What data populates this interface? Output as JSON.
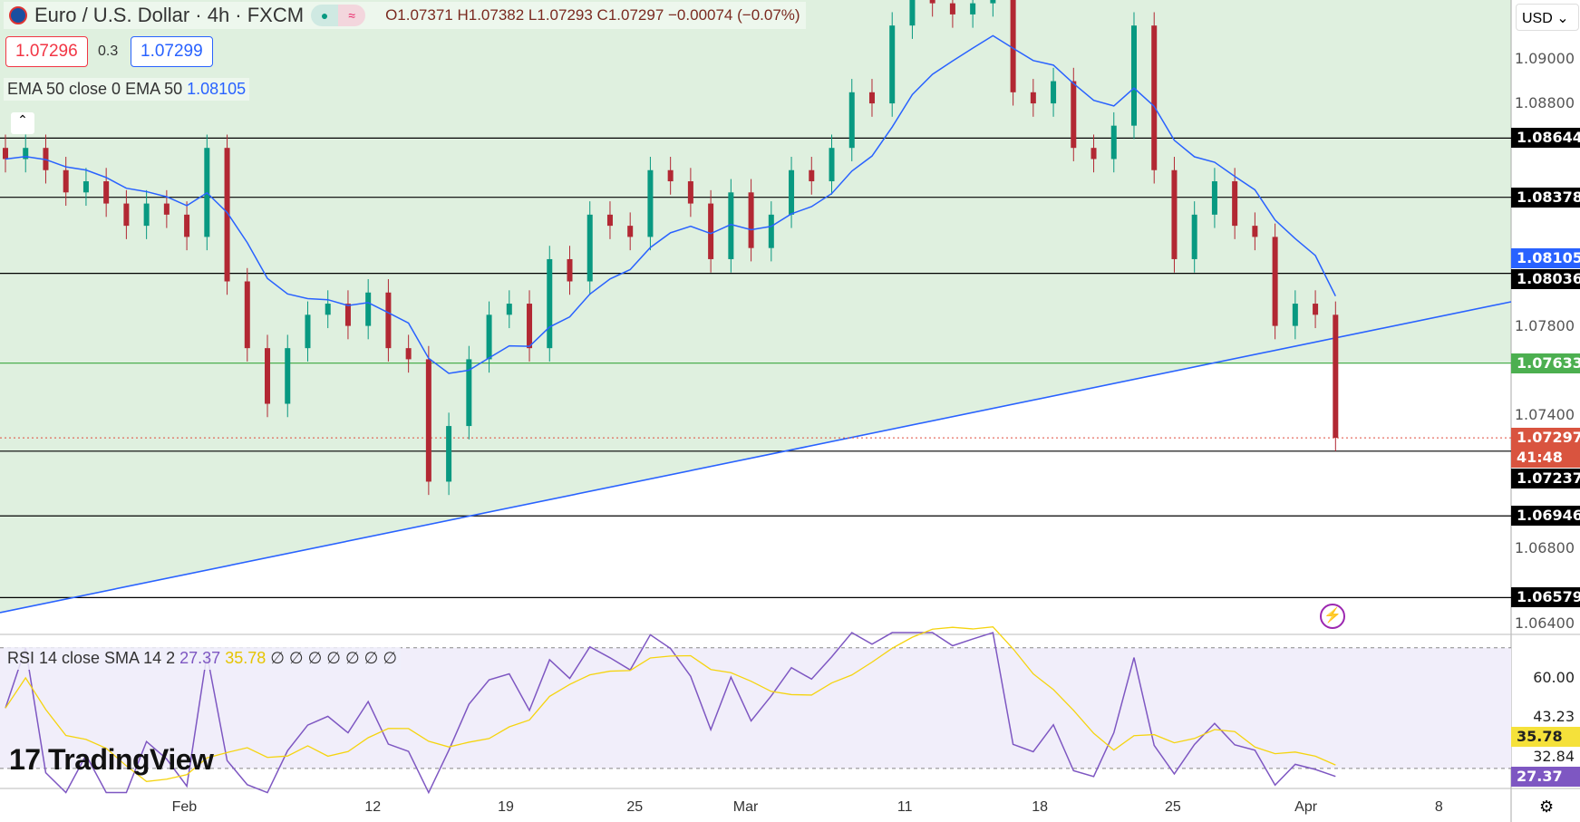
{
  "header": {
    "symbol": "Euro / U.S. Dollar · 4h · FXCM",
    "ohlc": "O1.07371 H1.07382 L1.07293 C1.07297 −0.00074 (−0.07%)",
    "bid": "1.07296",
    "spread": "0.3",
    "ask": "1.07299",
    "market_status": "open"
  },
  "ema_legend": {
    "label": "EMA 50 close 0 EMA 50",
    "value": "1.08105"
  },
  "rsi_legend": {
    "label": "RSI 14 close SMA 14 2",
    "rsi": "27.37",
    "sma": "35.78",
    "extra": "∅ ∅ ∅ ∅ ∅ ∅ ∅"
  },
  "currency": "USD",
  "branding": "TradingView",
  "colors": {
    "up": "#089981",
    "down": "#b22833",
    "ema": "#2962ff",
    "rsi": "#7e57c2",
    "rsi_sma": "#f5d40f",
    "zone": "#dff0df"
  },
  "chart_data": [
    {
      "type": "candlestick",
      "series": [
        {
          "name": "EURUSD",
          "closes": [
            1.0855,
            1.086,
            1.085,
            1.084,
            1.0845,
            1.0835,
            1.0825,
            1.0835,
            1.083,
            1.082,
            1.086,
            1.08,
            1.077,
            1.0745,
            1.077,
            1.0785,
            1.079,
            1.078,
            1.0795,
            1.077,
            1.0765,
            1.071,
            1.0735,
            1.0765,
            1.0785,
            1.079,
            1.077,
            1.081,
            1.08,
            1.083,
            1.0825,
            1.082,
            1.085,
            1.0845,
            1.0835,
            1.081,
            1.084,
            1.0815,
            1.083,
            1.085,
            1.0845,
            1.086,
            1.0885,
            1.088,
            1.0915,
            1.0935,
            1.0925,
            1.092,
            1.0925,
            1.093,
            1.0885,
            1.088,
            1.089,
            1.086,
            1.0855,
            1.087,
            1.0915,
            1.085,
            1.081,
            1.083,
            1.0845,
            1.0825,
            1.082,
            1.078,
            1.079,
            1.0785,
            1.07297
          ]
        },
        {
          "name": "EMA 50"
        }
      ],
      "ylim": [
        1.064,
        1.091
      ],
      "yticks": [
        "1.09000",
        "1.08800",
        "1.07800",
        "1.07400",
        "1.06800",
        "1.06400"
      ],
      "levels": [
        {
          "value": "1.08644",
          "color": "#000000"
        },
        {
          "value": "1.08378",
          "color": "#000000"
        },
        {
          "value": "1.08105",
          "color": "#2962ff",
          "label_only": true
        },
        {
          "value": "1.08036",
          "color": "#000000"
        },
        {
          "value": "1.07633",
          "color": "#4caf50"
        },
        {
          "value": "1.07237",
          "color": "#000000"
        },
        {
          "value": "1.06946",
          "color": "#000000"
        },
        {
          "value": "1.06579",
          "color": "#000000"
        }
      ],
      "current": {
        "value": "1.07297",
        "countdown": "41:48"
      },
      "xticks": [
        "Feb",
        "12",
        "19",
        "25",
        "Mar",
        "11",
        "18",
        "25",
        "Apr",
        "8"
      ]
    },
    {
      "type": "line",
      "title": "RSI",
      "ylim": [
        20,
        75
      ],
      "bands": [
        70,
        30
      ],
      "yticks": [
        "60.00",
        "43.23",
        "32.84"
      ],
      "labels": {
        "rsi": "27.37",
        "sma": "35.78"
      }
    }
  ]
}
